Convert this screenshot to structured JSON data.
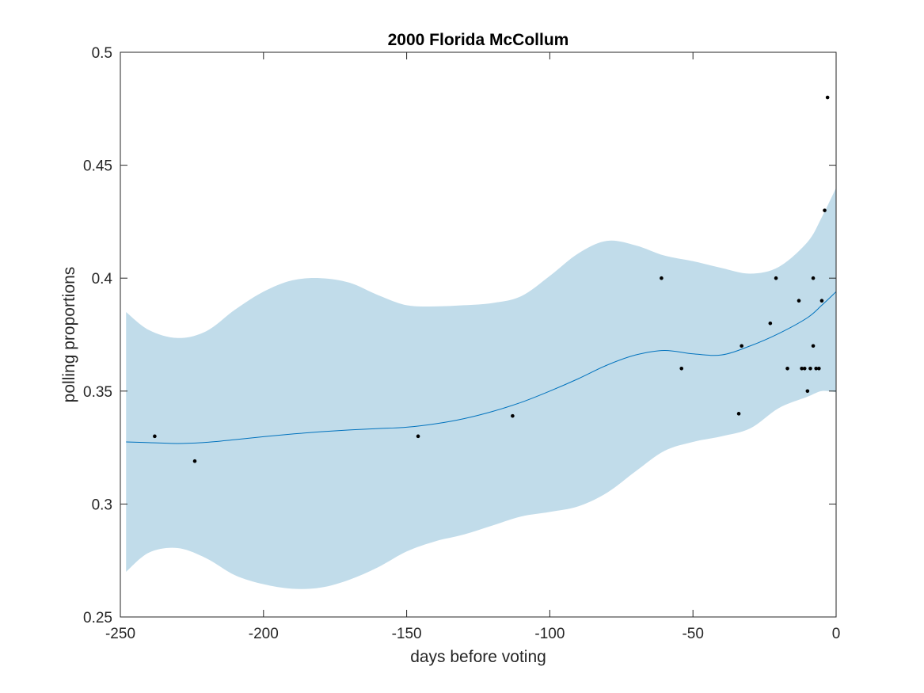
{
  "chart_data": {
    "type": "scatter",
    "title": "2000 Florida McCollum",
    "xlabel": "days before voting",
    "ylabel": "polling proportions",
    "xlim": [
      -250,
      0
    ],
    "ylim": [
      0.25,
      0.5
    ],
    "xticks": [
      -250,
      -200,
      -150,
      -100,
      -50,
      0
    ],
    "yticks": [
      0.25,
      0.3,
      0.35,
      0.4,
      0.45,
      0.5
    ],
    "xtick_labels": [
      "-250",
      "-200",
      "-150",
      "-100",
      "-50",
      "0"
    ],
    "ytick_labels": [
      "0.25",
      "0.3",
      "0.35",
      "0.4",
      "0.45",
      "0.5"
    ],
    "grid": false,
    "colors": {
      "band": "#c1dcea",
      "line": "#0072bd",
      "points": "#000000",
      "axes": "#262626"
    },
    "trend": {
      "x": [
        -248,
        -240,
        -230,
        -220,
        -210,
        -200,
        -190,
        -180,
        -170,
        -160,
        -150,
        -140,
        -130,
        -120,
        -110,
        -100,
        -90,
        -80,
        -70,
        -60,
        -50,
        -40,
        -30,
        -20,
        -10,
        -5,
        0
      ],
      "y": [
        0.3275,
        0.3272,
        0.3268,
        0.3273,
        0.3285,
        0.3298,
        0.331,
        0.332,
        0.3328,
        0.3334,
        0.334,
        0.3355,
        0.3378,
        0.341,
        0.345,
        0.35,
        0.3555,
        0.3615,
        0.366,
        0.368,
        0.3665,
        0.366,
        0.37,
        0.3755,
        0.3825,
        0.388,
        0.394
      ]
    },
    "band": {
      "x": [
        -248,
        -240,
        -230,
        -220,
        -210,
        -200,
        -190,
        -180,
        -170,
        -160,
        -150,
        -140,
        -130,
        -120,
        -110,
        -100,
        -90,
        -80,
        -70,
        -60,
        -50,
        -40,
        -30,
        -20,
        -10,
        -5,
        0
      ],
      "upper": [
        0.385,
        0.377,
        0.3735,
        0.3765,
        0.386,
        0.394,
        0.399,
        0.4,
        0.398,
        0.3925,
        0.388,
        0.3875,
        0.388,
        0.389,
        0.392,
        0.401,
        0.411,
        0.4165,
        0.4145,
        0.41,
        0.4075,
        0.4045,
        0.402,
        0.405,
        0.416,
        0.427,
        0.44
      ],
      "lower": [
        0.27,
        0.2785,
        0.2805,
        0.276,
        0.2685,
        0.2645,
        0.2625,
        0.263,
        0.2665,
        0.272,
        0.279,
        0.2835,
        0.2865,
        0.2905,
        0.2945,
        0.2965,
        0.299,
        0.305,
        0.3145,
        0.3235,
        0.3275,
        0.33,
        0.3335,
        0.3425,
        0.3475,
        0.35,
        0.3495
      ]
    },
    "points": {
      "x": [
        -238,
        -224,
        -146,
        -113,
        -61,
        -54,
        -34,
        -33,
        -23,
        -21,
        -17,
        -13,
        -12,
        -11,
        -10,
        -9,
        -8,
        -8,
        -7,
        -6,
        -5,
        -4,
        -3
      ],
      "y": [
        0.33,
        0.319,
        0.33,
        0.339,
        0.4,
        0.36,
        0.34,
        0.37,
        0.38,
        0.4,
        0.36,
        0.39,
        0.36,
        0.36,
        0.35,
        0.36,
        0.4,
        0.37,
        0.36,
        0.36,
        0.39,
        0.43,
        0.48
      ]
    }
  }
}
